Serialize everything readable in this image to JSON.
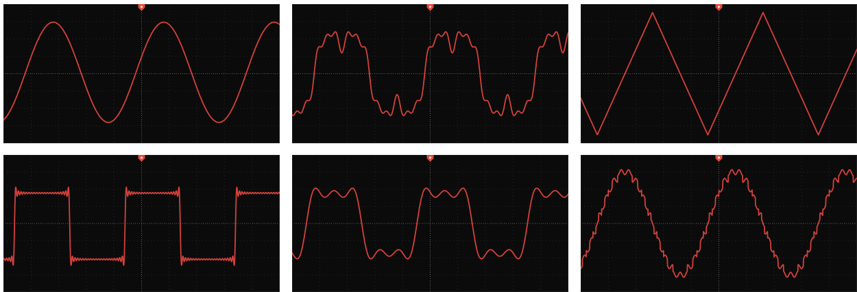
{
  "colors": {
    "background": "#ffffff",
    "screen": "#0b0b0c",
    "grid": "#3a3a3a",
    "trace": "#d4413a",
    "trigger_marker": "#e04a3a"
  },
  "icons": {
    "trigger_marker": "trigger-marker-icon"
  },
  "screens": [
    {
      "waveform": "sine",
      "description_name": "sine-wave"
    },
    {
      "waveform": "sine-with-harmonic",
      "description_name": "sine-harmonic-wave"
    },
    {
      "waveform": "triangle",
      "description_name": "triangle-wave"
    },
    {
      "waveform": "square",
      "description_name": "square-wave"
    },
    {
      "waveform": "rounded-square",
      "description_name": "rounded-square-wave"
    },
    {
      "waveform": "stepped",
      "description_name": "stepped-wave"
    }
  ]
}
